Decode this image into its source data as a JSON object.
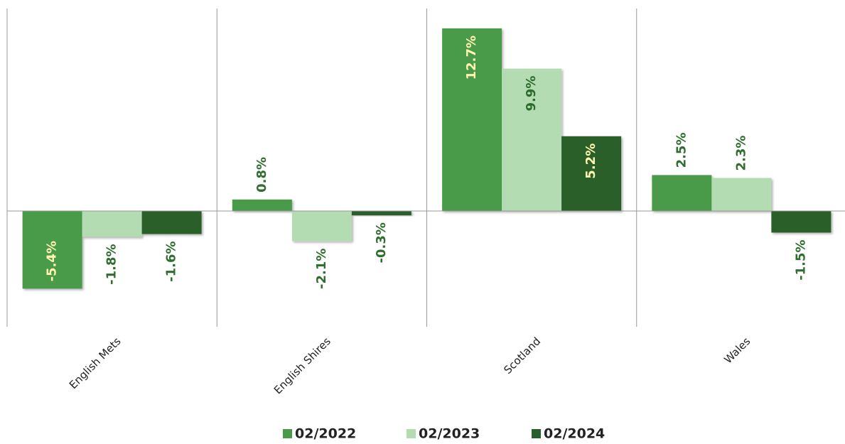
{
  "chart_data": {
    "type": "bar",
    "categories": [
      "English Mets",
      "English Shires",
      "Scotland",
      "Wales"
    ],
    "series": [
      {
        "name": "02/2022",
        "color": "#4a9a4a",
        "values": [
          -5.4,
          0.8,
          12.7,
          2.5
        ],
        "value_labels": [
          "-5.4%",
          "0.8%",
          "12.7%",
          "2.5%"
        ]
      },
      {
        "name": "02/2023",
        "color": "#b3dcb3",
        "values": [
          -1.8,
          -2.1,
          9.9,
          2.3
        ],
        "value_labels": [
          "-1.8%",
          "-2.1%",
          "9.9%",
          "2.3%"
        ]
      },
      {
        "name": "02/2024",
        "color": "#2a5e2a",
        "values": [
          -1.6,
          -0.3,
          5.2,
          -1.5
        ],
        "value_labels": [
          "-1.6%",
          "-0.3%",
          "5.2%",
          "-1.5%"
        ]
      }
    ],
    "ylim": [
      -8.05,
      14.08
    ],
    "legend": "bottom"
  }
}
